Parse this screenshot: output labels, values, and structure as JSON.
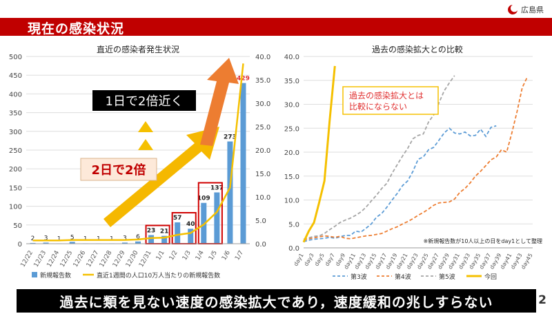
{
  "slide": {
    "title": "現在の感染状況",
    "logo_text": "広島県",
    "banner": "過去に類を見ない速度の感染拡大であり，速度緩和の兆しすらない",
    "page_number": "2"
  },
  "colors": {
    "red": "#c00000",
    "bar": "#5b9bd5",
    "line": "#f5c000",
    "orange": "#ed7d31",
    "gray": "#a5a5a5"
  },
  "chart_data": [
    {
      "type": "bar",
      "title": "直近の感染者発生状況",
      "categories": [
        "12/22",
        "12/23",
        "12/24",
        "12/25",
        "12/26",
        "12/27",
        "12/28",
        "12/29",
        "12/30",
        "12/31",
        "1/1",
        "1/2",
        "1/3",
        "1/4",
        "1/5",
        "1/6",
        "1/7"
      ],
      "ylim": [
        0,
        500
      ],
      "y_ticks": [
        0,
        50,
        100,
        150,
        200,
        250,
        300,
        350,
        400,
        450,
        500
      ],
      "y2lim": [
        0,
        40
      ],
      "y2_ticks": [
        "0.0",
        "5.0",
        "10.0",
        "15.0",
        "20.0",
        "25.0",
        "30.0",
        "35.0",
        "40.0"
      ],
      "grid": true,
      "legend_position": "bottom",
      "series": [
        {
          "name": "新規報告数",
          "kind": "bar",
          "axis": "left",
          "values": [
            2,
            3,
            1,
            5,
            1,
            1,
            1,
            3,
            6,
            23,
            21,
            57,
            40,
            109,
            137,
            273,
            429
          ],
          "labels": [
            "2",
            "3",
            "1",
            "5",
            "1",
            "1",
            "1",
            "3",
            "6",
            "23",
            "21",
            "57",
            "40",
            "109",
            "137",
            "273",
            "429"
          ]
        },
        {
          "name": "直近1週間の人口10万人当たりの新規報告数",
          "kind": "line",
          "axis": "right",
          "values": [
            0.7,
            0.7,
            0.7,
            0.8,
            0.8,
            0.8,
            0.8,
            0.8,
            0.9,
            1.2,
            1.3,
            1.9,
            2.3,
            4.1,
            6.8,
            12.0,
            38.5
          ]
        }
      ],
      "annotations": [
        {
          "text": "1日で2倍近く"
        },
        {
          "text": "2日で2倍"
        }
      ]
    },
    {
      "type": "line",
      "title": "過去の感染拡大との比較",
      "x_tick_labels": [
        "day1",
        "day3",
        "day5",
        "day7",
        "day9",
        "day11",
        "day13",
        "day15",
        "day17",
        "day19",
        "day21",
        "day23",
        "day25",
        "day27",
        "day29",
        "day31",
        "day33",
        "day35",
        "day37",
        "day39",
        "day41",
        "day43",
        "day45"
      ],
      "ylim": [
        0,
        40
      ],
      "y_ticks": [
        "0.0",
        "5.0",
        "10.0",
        "15.0",
        "20.0",
        "25.0",
        "30.0",
        "35.0",
        "40.0"
      ],
      "grid": true,
      "legend_position": "bottom",
      "series": [
        {
          "name": "第3波",
          "style": "dashed",
          "values": [
            1.3,
            1.6,
            1.8,
            1.9,
            2.0,
            2.2,
            2.0,
            2.3,
            2.6,
            2.6,
            3.5,
            3.3,
            4.1,
            5.0,
            6.4,
            7.2,
            8.5,
            10.0,
            11.4,
            13.0,
            14.0,
            16.0,
            18.5,
            19.0,
            20.5,
            21.0,
            22.5,
            24.0,
            25.0,
            24.0,
            23.8,
            24.2,
            23.4,
            23.5,
            24.8,
            23.3,
            25.2,
            25.5
          ]
        },
        {
          "name": "第4波",
          "style": "dashed",
          "values": [
            1.6,
            1.9,
            2.1,
            2.3,
            2.5,
            2.4,
            2.2,
            2.4,
            2.0,
            1.9,
            2.1,
            2.3,
            2.5,
            2.6,
            2.8,
            3.0,
            3.5,
            4.0,
            4.4,
            5.0,
            5.5,
            6.1,
            6.8,
            7.4,
            8.1,
            8.9,
            9.4,
            9.5,
            9.6,
            10.2,
            11.6,
            12.4,
            13.6,
            15.0,
            16.0,
            17.2,
            18.4,
            19.0,
            20.5,
            20.0,
            24.0,
            28.5,
            33.5,
            35.8
          ]
        },
        {
          "name": "第5波",
          "style": "dashed",
          "values": [
            1.8,
            2.1,
            2.4,
            2.5,
            3.0,
            3.8,
            4.5,
            5.3,
            5.8,
            6.2,
            6.8,
            7.5,
            8.5,
            9.8,
            11.0,
            12.4,
            13.5,
            15.6,
            17.4,
            19.2,
            20.8,
            22.8,
            23.5,
            23.8,
            26.3,
            27.8,
            30.3,
            32.8,
            34.5,
            36.0
          ]
        },
        {
          "name": "今回",
          "style": "solid",
          "values": [
            1.2,
            3.5,
            5.3,
            9.5,
            14.0,
            26.5,
            38.0
          ]
        }
      ],
      "annotations": [
        {
          "text": "過去の感染拡大とは\n比較にならない"
        },
        {
          "text": "※新規報告数が10人以上の日をday1として整理"
        }
      ]
    }
  ]
}
